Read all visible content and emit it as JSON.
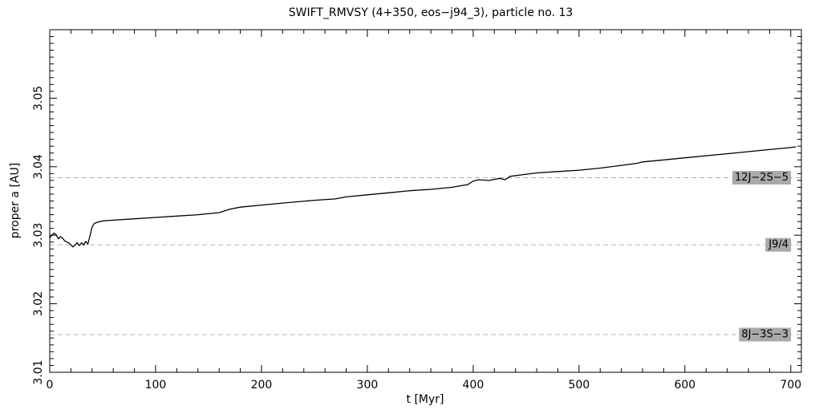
{
  "chart_data": {
    "type": "line",
    "title": "SWIFT_RMVSY (4+350, eos−j94_3), particle no. 13",
    "xlabel": "t [Myr]",
    "ylabel": "proper a [AU]",
    "xlim": [
      0,
      710
    ],
    "ylim": [
      3.01,
      3.06
    ],
    "x_ticks": [
      0,
      100,
      200,
      300,
      400,
      500,
      600,
      700
    ],
    "x_tick_labels": [
      "0",
      "100",
      "200",
      "300",
      "400",
      "500",
      "600",
      "700"
    ],
    "y_ticks": [
      3.01,
      3.02,
      3.03,
      3.04,
      3.05
    ],
    "y_tick_labels": [
      "3.01",
      "3.02",
      "3.03",
      "3.04",
      "3.05"
    ],
    "grid": false,
    "series": [
      {
        "x": [
          0,
          2,
          4,
          6,
          8,
          10,
          12,
          14,
          16,
          18,
          20,
          22,
          24,
          26,
          28,
          30,
          32,
          34,
          36,
          38,
          40,
          42,
          45,
          50,
          60,
          80,
          100,
          120,
          140,
          160,
          170,
          180,
          200,
          220,
          250,
          270,
          280,
          300,
          320,
          340,
          360,
          380,
          395,
          400,
          405,
          415,
          425,
          430,
          435,
          445,
          460,
          480,
          500,
          520,
          540,
          555,
          560,
          580,
          600,
          620,
          640,
          660,
          680,
          700,
          705
        ],
        "y": [
          3.0296,
          3.03,
          3.0303,
          3.0301,
          3.0295,
          3.0298,
          3.0296,
          3.0292,
          3.029,
          3.0289,
          3.0286,
          3.0283,
          3.0286,
          3.0289,
          3.0285,
          3.0289,
          3.0286,
          3.0291,
          3.0287,
          3.0299,
          3.0312,
          3.0317,
          3.0319,
          3.0321,
          3.0322,
          3.0324,
          3.0326,
          3.0328,
          3.033,
          3.0333,
          3.0338,
          3.0341,
          3.0344,
          3.0347,
          3.0351,
          3.0353,
          3.0356,
          3.0359,
          3.0362,
          3.0365,
          3.0367,
          3.037,
          3.0374,
          3.0379,
          3.0381,
          3.038,
          3.0383,
          3.0381,
          3.0386,
          3.0388,
          3.0391,
          3.0393,
          3.0395,
          3.0398,
          3.0402,
          3.0405,
          3.0407,
          3.041,
          3.0413,
          3.0416,
          3.0419,
          3.0422,
          3.0425,
          3.0428,
          3.0429
        ]
      }
    ],
    "resonances": [
      {
        "label": "12J−2S−5",
        "a": 3.0384
      },
      {
        "label": "J9/4",
        "a": 3.0286
      },
      {
        "label": "8J−3S−3",
        "a": 3.0155
      }
    ],
    "colors": {
      "line": "#000000",
      "resonance_line": "#b0b0b0",
      "label_bg": "#a9a9a9"
    }
  }
}
